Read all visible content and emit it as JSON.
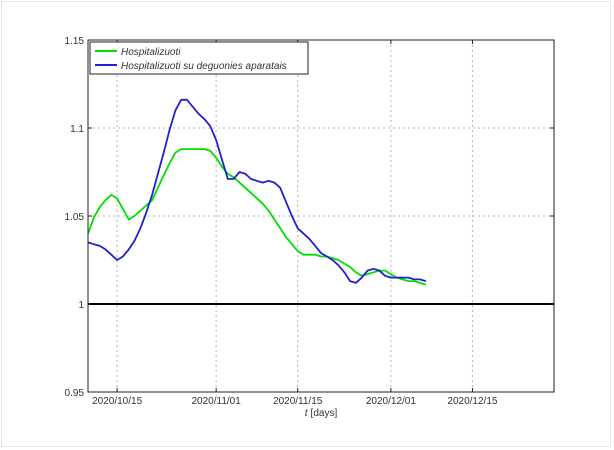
{
  "chart_data": {
    "type": "line",
    "title": "",
    "xlabel_var": "t",
    "xlabel_unit": "[days]",
    "ylabel": "",
    "x_start": "2020/10/10",
    "x_end": "2020/12/29",
    "ylim": [
      0.95,
      1.15
    ],
    "yticks": [
      0.95,
      1,
      1.05,
      1.1,
      1.15
    ],
    "ytick_labels": [
      "0.95",
      "1",
      "1.05",
      "1.1",
      "1.15"
    ],
    "xtick_labels": [
      "2020/10/15",
      "2020/11/01",
      "2020/11/15",
      "2020/12/01",
      "2020/12/15"
    ],
    "xtick_dates": [
      "2020/10/15",
      "2020/11/01",
      "2020/11/15",
      "2020/12/01",
      "2020/12/15"
    ],
    "grid": true,
    "legend_position": "top-left",
    "reference_line": {
      "y": 1,
      "color": "#000000"
    },
    "series": [
      {
        "name": "Hospitalizuoti",
        "color": "#00e000",
        "points": [
          [
            "2020/10/10",
            1.04
          ],
          [
            "2020/10/11",
            1.049
          ],
          [
            "2020/10/12",
            1.055
          ],
          [
            "2020/10/13",
            1.059
          ],
          [
            "2020/10/14",
            1.062
          ],
          [
            "2020/10/15",
            1.06
          ],
          [
            "2020/10/16",
            1.054
          ],
          [
            "2020/10/17",
            1.048
          ],
          [
            "2020/10/18",
            1.05
          ],
          [
            "2020/10/19",
            1.053
          ],
          [
            "2020/10/20",
            1.056
          ],
          [
            "2020/10/21",
            1.059
          ],
          [
            "2020/10/22",
            1.066
          ],
          [
            "2020/10/23",
            1.073
          ],
          [
            "2020/10/24",
            1.08
          ],
          [
            "2020/10/25",
            1.086
          ],
          [
            "2020/10/26",
            1.088
          ],
          [
            "2020/10/27",
            1.088
          ],
          [
            "2020/10/28",
            1.088
          ],
          [
            "2020/10/29",
            1.088
          ],
          [
            "2020/10/30",
            1.088
          ],
          [
            "2020/10/31",
            1.087
          ],
          [
            "2020/11/01",
            1.083
          ],
          [
            "2020/11/02",
            1.078
          ],
          [
            "2020/11/03",
            1.074
          ],
          [
            "2020/11/04",
            1.072
          ],
          [
            "2020/11/05",
            1.069
          ],
          [
            "2020/11/06",
            1.066
          ],
          [
            "2020/11/07",
            1.063
          ],
          [
            "2020/11/08",
            1.06
          ],
          [
            "2020/11/09",
            1.057
          ],
          [
            "2020/11/10",
            1.053
          ],
          [
            "2020/11/11",
            1.048
          ],
          [
            "2020/11/12",
            1.043
          ],
          [
            "2020/11/13",
            1.038
          ],
          [
            "2020/11/14",
            1.034
          ],
          [
            "2020/11/15",
            1.03
          ],
          [
            "2020/11/16",
            1.028
          ],
          [
            "2020/11/17",
            1.028
          ],
          [
            "2020/11/18",
            1.028
          ],
          [
            "2020/11/19",
            1.027
          ],
          [
            "2020/11/20",
            1.027
          ],
          [
            "2020/11/21",
            1.026
          ],
          [
            "2020/11/22",
            1.025
          ],
          [
            "2020/11/23",
            1.023
          ],
          [
            "2020/11/24",
            1.021
          ],
          [
            "2020/11/25",
            1.018
          ],
          [
            "2020/11/26",
            1.016
          ],
          [
            "2020/11/27",
            1.017
          ],
          [
            "2020/11/28",
            1.018
          ],
          [
            "2020/11/29",
            1.019
          ],
          [
            "2020/11/30",
            1.019
          ],
          [
            "2020/12/01",
            1.017
          ],
          [
            "2020/12/02",
            1.015
          ],
          [
            "2020/12/03",
            1.014
          ],
          [
            "2020/12/04",
            1.013
          ],
          [
            "2020/12/05",
            1.013
          ],
          [
            "2020/12/06",
            1.012
          ],
          [
            "2020/12/07",
            1.011
          ]
        ]
      },
      {
        "name": "Hospitalizuoti su deguonies aparatais",
        "color": "#2020d0",
        "points": [
          [
            "2020/10/10",
            1.035
          ],
          [
            "2020/10/11",
            1.034
          ],
          [
            "2020/10/12",
            1.033
          ],
          [
            "2020/10/13",
            1.031
          ],
          [
            "2020/10/14",
            1.028
          ],
          [
            "2020/10/15",
            1.025
          ],
          [
            "2020/10/16",
            1.027
          ],
          [
            "2020/10/17",
            1.031
          ],
          [
            "2020/10/18",
            1.036
          ],
          [
            "2020/10/19",
            1.043
          ],
          [
            "2020/10/20",
            1.052
          ],
          [
            "2020/10/21",
            1.062
          ],
          [
            "2020/10/22",
            1.074
          ],
          [
            "2020/10/23",
            1.086
          ],
          [
            "2020/10/24",
            1.099
          ],
          [
            "2020/10/25",
            1.11
          ],
          [
            "2020/10/26",
            1.116
          ],
          [
            "2020/10/27",
            1.116
          ],
          [
            "2020/10/28",
            1.112
          ],
          [
            "2020/10/29",
            1.108
          ],
          [
            "2020/10/30",
            1.105
          ],
          [
            "2020/10/31",
            1.101
          ],
          [
            "2020/11/01",
            1.093
          ],
          [
            "2020/11/02",
            1.082
          ],
          [
            "2020/11/03",
            1.071
          ],
          [
            "2020/11/04",
            1.071
          ],
          [
            "2020/11/05",
            1.075
          ],
          [
            "2020/11/06",
            1.074
          ],
          [
            "2020/11/07",
            1.071
          ],
          [
            "2020/11/08",
            1.07
          ],
          [
            "2020/11/09",
            1.069
          ],
          [
            "2020/11/10",
            1.07
          ],
          [
            "2020/11/11",
            1.069
          ],
          [
            "2020/11/12",
            1.066
          ],
          [
            "2020/11/13",
            1.058
          ],
          [
            "2020/11/14",
            1.05
          ],
          [
            "2020/11/15",
            1.043
          ],
          [
            "2020/11/16",
            1.04
          ],
          [
            "2020/11/17",
            1.037
          ],
          [
            "2020/11/18",
            1.033
          ],
          [
            "2020/11/19",
            1.029
          ],
          [
            "2020/11/20",
            1.027
          ],
          [
            "2020/11/21",
            1.025
          ],
          [
            "2020/11/22",
            1.022
          ],
          [
            "2020/11/23",
            1.018
          ],
          [
            "2020/11/24",
            1.013
          ],
          [
            "2020/11/25",
            1.012
          ],
          [
            "2020/11/26",
            1.015
          ],
          [
            "2020/11/27",
            1.019
          ],
          [
            "2020/11/28",
            1.02
          ],
          [
            "2020/11/29",
            1.019
          ],
          [
            "2020/11/30",
            1.016
          ],
          [
            "2020/12/01",
            1.015
          ],
          [
            "2020/12/02",
            1.015
          ],
          [
            "2020/12/03",
            1.015
          ],
          [
            "2020/12/04",
            1.015
          ],
          [
            "2020/12/05",
            1.014
          ],
          [
            "2020/12/06",
            1.014
          ],
          [
            "2020/12/07",
            1.013
          ]
        ]
      }
    ]
  }
}
